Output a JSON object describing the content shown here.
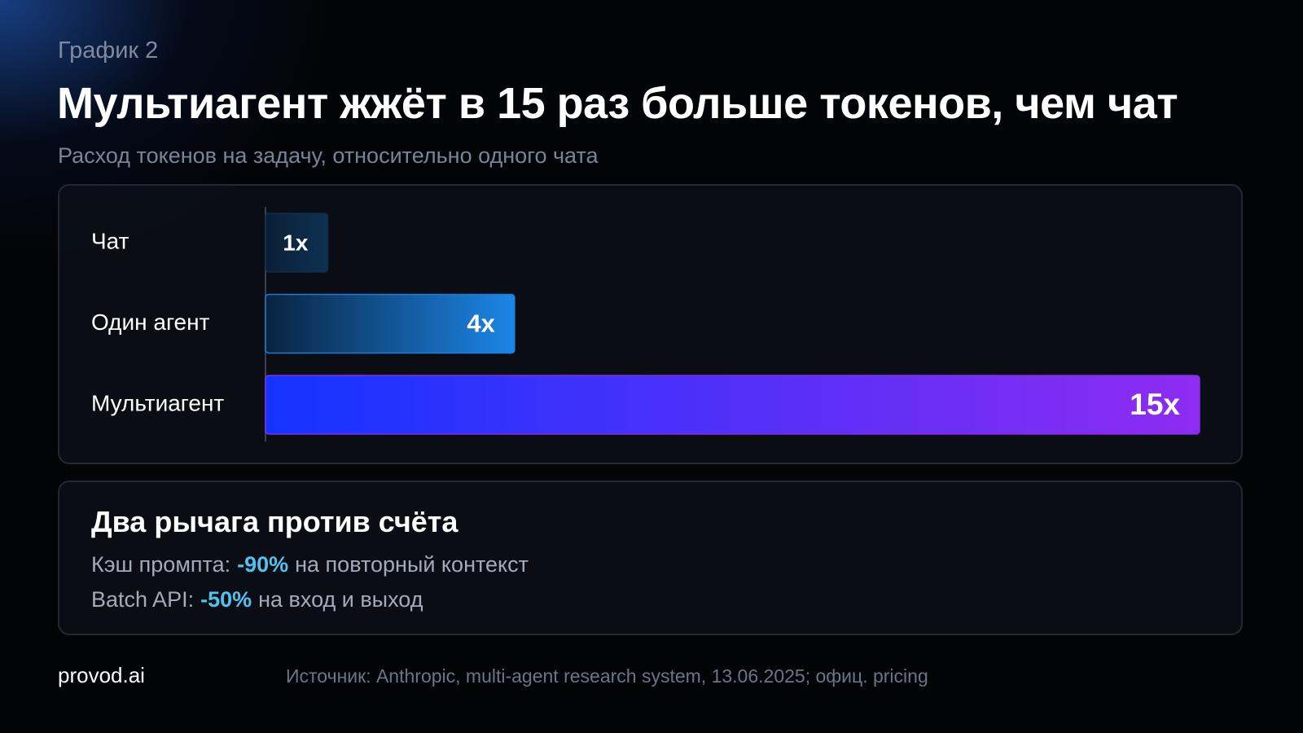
{
  "kicker": "График 2",
  "title": "Мультиагент жжёт в 15 раз больше токенов, чем чат",
  "subtitle": "Расход токенов на задачу, относительно одного чата",
  "chart_data": {
    "type": "bar",
    "orientation": "horizontal",
    "categories": [
      "Чат",
      "Один агент",
      "Мультиагент"
    ],
    "values": [
      1,
      4,
      15
    ],
    "value_labels": [
      "1x",
      "4x",
      "15x"
    ],
    "gradients": [
      [
        "#0b1f36",
        "#0d3152"
      ],
      [
        "#0a2340",
        "#1c86e8"
      ],
      [
        "#1434ff",
        "#8e2cf2"
      ]
    ]
  },
  "notes": {
    "title": "Два рычага против счёта",
    "lines": [
      {
        "label": "Кэш промпта:",
        "highlight": "-90%",
        "text": "на повторный контекст"
      },
      {
        "label": "Batch API:",
        "highlight": "-50%",
        "text": "на вход и выход"
      }
    ]
  },
  "footer": {
    "brand": "provod.ai",
    "source": "Источник: Anthropic, multi-agent research system, 13.06.2025; офиц. pricing"
  }
}
